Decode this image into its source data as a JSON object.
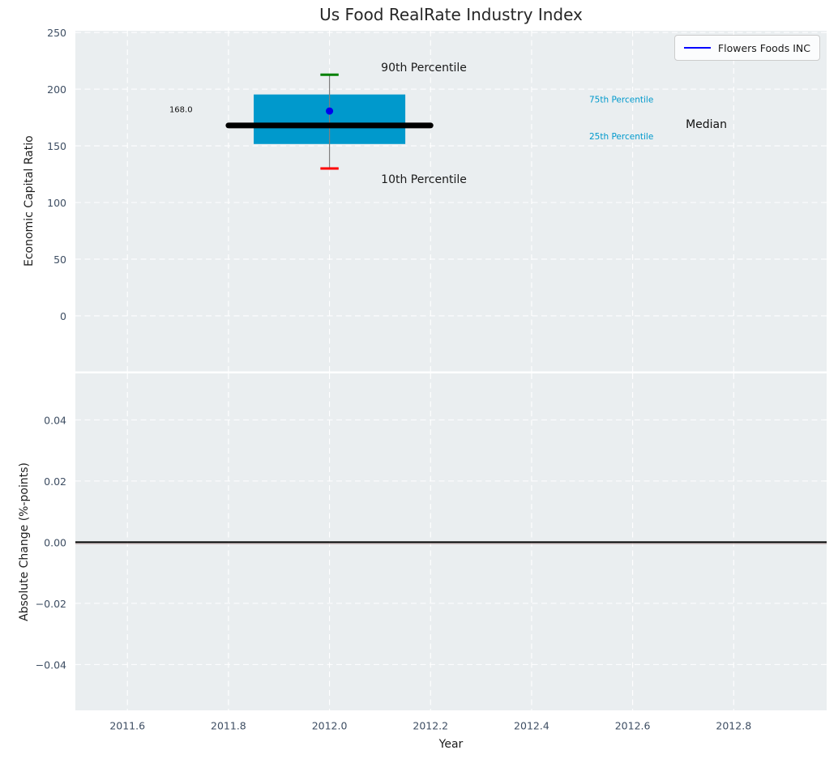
{
  "figure": {
    "background": "#ffffff",
    "axes_background": "#eaeef0",
    "grid_color": "#ffffff",
    "tick_color": "#3e4e63",
    "text_color": "#262626"
  },
  "chart_data": [
    {
      "type": "box",
      "title": "Us Food RealRate Industry Index",
      "ylabel": "Economic Capital Ratio",
      "xlim": [
        2011.497,
        2012.984
      ],
      "ylim": [
        -49,
        251.5
      ],
      "grid": true,
      "xticks": [
        2011.6,
        2011.8,
        2012.0,
        2012.2,
        2012.4,
        2012.6,
        2012.8
      ],
      "yticks": [
        250,
        200,
        150,
        100,
        50,
        0
      ],
      "ytick_labels": [
        "250",
        "200",
        "150",
        "100",
        "50",
        "0"
      ],
      "legend": {
        "label": "Flowers Foods INC",
        "line_color": "#0000ff",
        "position": "upper right"
      },
      "box": {
        "x": 2012.0,
        "box_left": 2011.85,
        "box_right": 2012.15,
        "median_left": 2011.8,
        "median_right": 2012.2,
        "cap_halfwidth": 0.018,
        "p10": 130,
        "p25": 151.6,
        "median": 168.0,
        "p75": 195.3,
        "p90": 212.7,
        "box_color": "#0099cc",
        "median_color": "#000000",
        "whisker_color": "#7f7f7f",
        "cap_top_color": "#008000",
        "cap_bottom_color": "#ff0000"
      },
      "point": {
        "x": 2012.0,
        "y": 180.7,
        "color": "#0000ee",
        "series": "Flowers Foods INC"
      },
      "annotations": [
        {
          "text": "90th Percentile",
          "x": 2012.102,
          "y": 218.5,
          "color": "#1a1a1a",
          "size": 14
        },
        {
          "text": "10th Percentile",
          "x": 2012.102,
          "y": 120.0,
          "color": "#1a1a1a",
          "size": 14
        },
        {
          "text": "168.0",
          "x": 2011.683,
          "y": 181.5,
          "color": "#111111",
          "size": 10
        },
        {
          "text": "75th Percentile",
          "x": 2012.514,
          "y": 190.5,
          "color": "#0099cc",
          "size": 10.5
        },
        {
          "text": "25th Percentile",
          "x": 2012.514,
          "y": 158.0,
          "color": "#0099cc",
          "size": 10.5
        },
        {
          "text": "Median",
          "x": 2012.705,
          "y": 168.5,
          "color": "#111111",
          "size": 14
        }
      ]
    },
    {
      "type": "line",
      "ylabel": "Absolute Change (%-points)",
      "xlabel": "Year",
      "xlim": [
        2011.497,
        2012.984
      ],
      "ylim": [
        -0.055,
        0.0552
      ],
      "grid": true,
      "xticks": [
        2011.6,
        2011.8,
        2012.0,
        2012.2,
        2012.4,
        2012.6,
        2012.8
      ],
      "xtick_labels": [
        "2011.6",
        "2011.8",
        "2012.0",
        "2012.2",
        "2012.4",
        "2012.6",
        "2012.8"
      ],
      "yticks": [
        0.04,
        0.02,
        0,
        -0.02,
        -0.04
      ],
      "ytick_labels": [
        "0.04",
        "0.02",
        "0.00",
        "−0.02",
        "−0.04"
      ],
      "zero_line": {
        "y": 0,
        "color": "#000000",
        "width": 2
      }
    }
  ]
}
